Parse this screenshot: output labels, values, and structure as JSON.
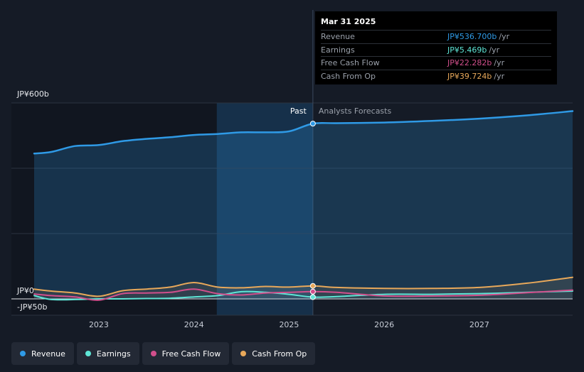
{
  "tooltip": {
    "date": "Mar 31 2025",
    "rows": [
      {
        "label": "Revenue",
        "value": "JP¥536.700b",
        "unit": "/yr",
        "color": "#2f9ae6"
      },
      {
        "label": "Earnings",
        "value": "JP¥5.469b",
        "unit": "/yr",
        "color": "#5ee6d6"
      },
      {
        "label": "Free Cash Flow",
        "value": "JP¥22.282b",
        "unit": "/yr",
        "color": "#d14f8c"
      },
      {
        "label": "Cash From Op",
        "value": "JP¥39.724b",
        "unit": "/yr",
        "color": "#e8a85a"
      }
    ]
  },
  "labels": {
    "past": "Past",
    "forecast": "Analysts Forecasts"
  },
  "chart_data": {
    "type": "area",
    "y_tick_labels": [
      "JP¥600b",
      "JP¥0",
      "-JP¥50b"
    ],
    "y_ticks": [
      600,
      0,
      -50
    ],
    "ylim": [
      -50,
      600
    ],
    "xlim": [
      2022.32,
      2027.98
    ],
    "x_tick_labels": [
      "2023",
      "2024",
      "2025",
      "2026",
      "2027"
    ],
    "x_ticks": [
      2023,
      2024,
      2025,
      2026,
      2027
    ],
    "past_region": [
      2022.24,
      2025.25
    ],
    "highlight_region": [
      2024.24,
      2025.25
    ],
    "split_x": 2025.25,
    "grid": true,
    "series": [
      {
        "name": "Revenue",
        "color": "#2f9ae6",
        "fill": true,
        "x": [
          2022.32,
          2022.5,
          2022.75,
          2023.0,
          2023.25,
          2023.5,
          2023.75,
          2024.0,
          2024.25,
          2024.5,
          2024.75,
          2025.0,
          2025.25,
          2025.5,
          2026.0,
          2026.5,
          2027.0,
          2027.5,
          2027.98
        ],
        "y": [
          445,
          450,
          468,
          471,
          483,
          490,
          495,
          502,
          505,
          510,
          510,
          513,
          536.7,
          538,
          540,
          545,
          552,
          562,
          575
        ]
      },
      {
        "name": "Earnings",
        "color": "#5ee6d6",
        "fill": false,
        "x": [
          2022.32,
          2022.5,
          2022.75,
          2023.0,
          2023.25,
          2023.5,
          2023.75,
          2024.0,
          2024.25,
          2024.5,
          2024.75,
          2025.0,
          2025.25,
          2025.5,
          2026.0,
          2026.5,
          2027.0,
          2027.5,
          2027.98
        ],
        "y": [
          10,
          -2,
          -2,
          0,
          0,
          1,
          2,
          6,
          10,
          22,
          20,
          14,
          5.469,
          7,
          14,
          14,
          16,
          20,
          24
        ]
      },
      {
        "name": "Free Cash Flow",
        "color": "#d14f8c",
        "fill": false,
        "x": [
          2022.32,
          2022.5,
          2022.75,
          2023.0,
          2023.25,
          2023.5,
          2023.75,
          2024.0,
          2024.25,
          2024.5,
          2024.75,
          2025.0,
          2025.25,
          2025.5,
          2026.0,
          2026.5,
          2027.0,
          2027.5,
          2027.98
        ],
        "y": [
          15,
          10,
          6,
          -4,
          16,
          18,
          20,
          30,
          16,
          12,
          18,
          20,
          22.282,
          20,
          9,
          9,
          11,
          19,
          27
        ]
      },
      {
        "name": "Cash From Op",
        "color": "#e8a85a",
        "fill": true,
        "x": [
          2022.32,
          2022.5,
          2022.75,
          2023.0,
          2023.25,
          2023.5,
          2023.75,
          2024.0,
          2024.25,
          2024.5,
          2024.75,
          2025.0,
          2025.25,
          2025.5,
          2026.0,
          2026.5,
          2027.0,
          2027.5,
          2027.98
        ],
        "y": [
          30,
          24,
          18,
          8,
          25,
          30,
          36,
          50,
          36,
          34,
          38,
          36,
          39.724,
          35,
          32,
          32,
          35,
          48,
          66
        ]
      }
    ]
  },
  "legend": [
    {
      "label": "Revenue",
      "color": "#2f9ae6"
    },
    {
      "label": "Earnings",
      "color": "#5ee6d6"
    },
    {
      "label": "Free Cash Flow",
      "color": "#d14f8c"
    },
    {
      "label": "Cash From Op",
      "color": "#e8a85a"
    }
  ]
}
